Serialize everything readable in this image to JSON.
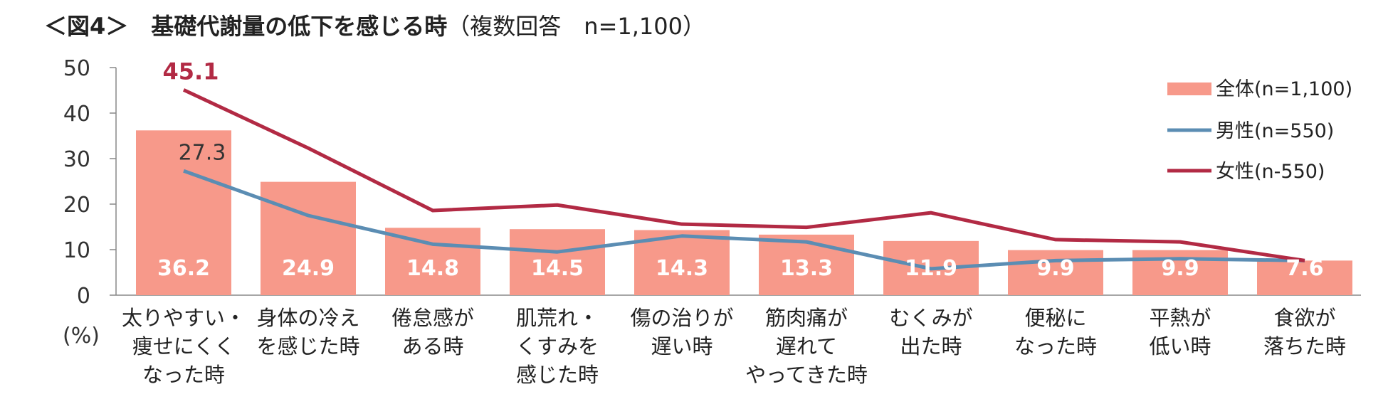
{
  "title": "＜図4＞　基礎代謝量の低下を感じる時",
  "subtitle": "（複数回答　n=1,100）",
  "chart_data": {
    "type": "bar",
    "categories": [
      [
        "太りやすい・",
        "痩せにくく",
        "なった時"
      ],
      [
        "身体の冷え",
        "を感じた時"
      ],
      [
        "倦怠感が",
        "ある時"
      ],
      [
        "肌荒れ・",
        "くすみを",
        "感じた時"
      ],
      [
        "傷の治りが",
        "遅い時"
      ],
      [
        "筋肉痛が",
        "遅れて",
        "やってきた時"
      ],
      [
        "むくみが",
        "出た時"
      ],
      [
        "便秘に",
        "なった時"
      ],
      [
        "平熱が",
        "低い時"
      ],
      [
        "食欲が",
        "落ちた時"
      ]
    ],
    "series": [
      {
        "name": "全体(n=1,100)",
        "type": "bar",
        "color": "#f7998a",
        "values": [
          36.2,
          24.9,
          14.8,
          14.5,
          14.3,
          13.3,
          11.9,
          9.9,
          9.9,
          7.6
        ],
        "labels": [
          "36.2",
          "24.9",
          "14.8",
          "14.5",
          "14.3",
          "13.3",
          "11.9",
          "9.9",
          "9.9",
          "7.6"
        ]
      },
      {
        "name": "男性(n=550)",
        "type": "line",
        "color": "#5b8db3",
        "values": [
          27.3,
          17.5,
          11.2,
          9.5,
          13.0,
          11.7,
          5.8,
          7.6,
          8.0,
          7.6
        ],
        "labeled_index": 0,
        "label": "27.3"
      },
      {
        "name": "女性(n-550)",
        "type": "line",
        "color": "#b22a44",
        "values": [
          45.1,
          32.3,
          18.6,
          19.8,
          15.6,
          14.9,
          18.1,
          12.2,
          11.7,
          7.6
        ],
        "labeled_index": 0,
        "label": "45.1"
      }
    ],
    "y_ticks": [
      "0",
      "10",
      "20",
      "30",
      "40",
      "50"
    ],
    "ylim": [
      0,
      50
    ],
    "ylabel": "(%)",
    "legend_position": "right"
  }
}
